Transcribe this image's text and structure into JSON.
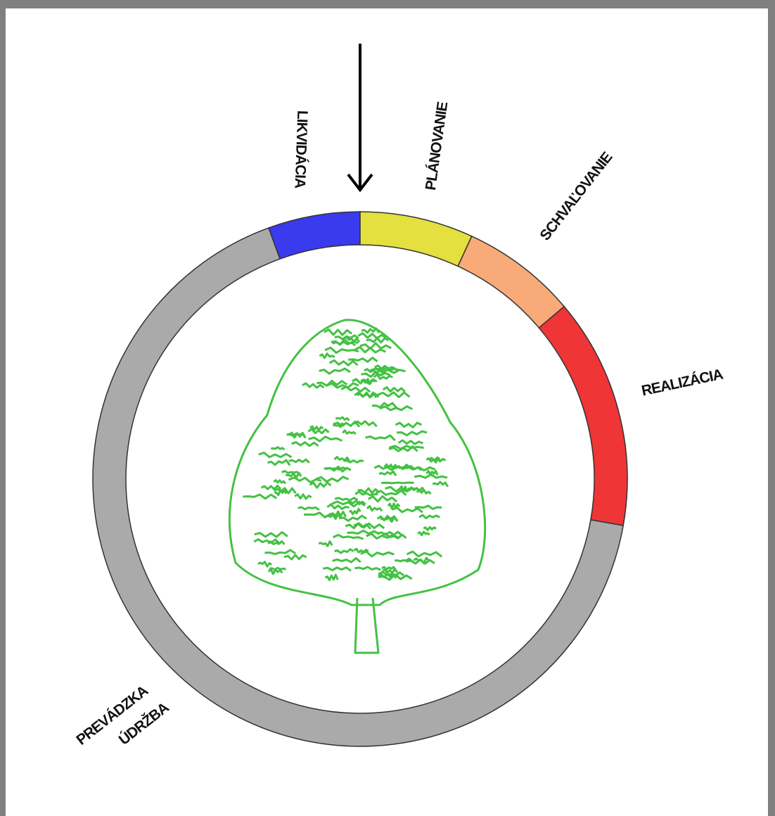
{
  "arrow_label": "LIKVIDÁCIA",
  "stages": [
    {
      "label": "PLÁNOVANIE"
    },
    {
      "label": "SCHVAĽOVANIE"
    },
    {
      "label": "REALIZÁCIA"
    }
  ],
  "operation": {
    "lines": [
      "PREVÁDZKA",
      "ÚDRŽBA"
    ]
  }
}
